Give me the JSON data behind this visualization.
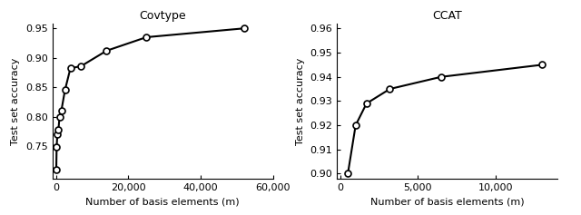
{
  "covtype": {
    "title": "Covtype",
    "x": [
      100,
      200,
      400,
      700,
      1000,
      1500,
      2500,
      4000,
      7000,
      14000,
      25000,
      52000
    ],
    "y": [
      0.71,
      0.748,
      0.77,
      0.778,
      0.8,
      0.81,
      0.845,
      0.882,
      0.886,
      0.912,
      0.935,
      0.95
    ],
    "xlim": [
      -1000,
      60000
    ],
    "ylim": [
      0.695,
      0.958
    ],
    "yticks": [
      0.75,
      0.8,
      0.85,
      0.9,
      0.95
    ],
    "xticks": [
      0,
      20000,
      40000,
      60000
    ],
    "xlabel": "Number of basis elements (m)",
    "ylabel": "Test set accuracy"
  },
  "ccat": {
    "title": "CCAT",
    "x": [
      500,
      1000,
      1700,
      3200,
      6500,
      13000
    ],
    "y": [
      0.9,
      0.92,
      0.929,
      0.935,
      0.94,
      0.945
    ],
    "xlim": [
      -200,
      14000
    ],
    "ylim": [
      0.898,
      0.962
    ],
    "yticks": [
      0.9,
      0.91,
      0.92,
      0.93,
      0.94,
      0.95,
      0.96
    ],
    "xticks": [
      0,
      5000,
      10000
    ],
    "xlabel": "Number of basis elements (m)",
    "ylabel": "Test set accuracy"
  },
  "line_color": "#000000",
  "marker": "o",
  "markersize": 5,
  "markerfacecolor": "#ffffff",
  "markeredgecolor": "#000000",
  "markeredgewidth": 1.2,
  "linewidth": 1.5,
  "background_color": "#ffffff",
  "title_fontsize": 9,
  "label_fontsize": 8,
  "tick_fontsize": 8
}
